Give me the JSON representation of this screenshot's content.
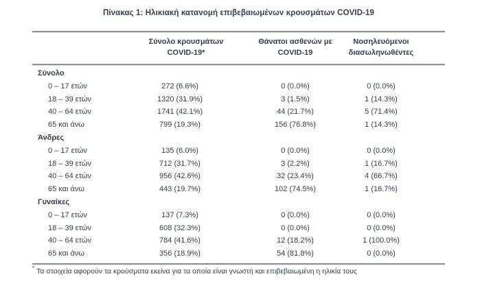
{
  "title": "Πίνακας 1: Ηλικιακή κατανομή επιβεβαιωμένων κρουσμάτων COVID-19",
  "table": {
    "columns": [
      {
        "line1": "Σύνολο κρουσμάτων",
        "line2": "COVID-19*"
      },
      {
        "line1": "Θάνατοι ασθενών με",
        "line2": "COVID-19"
      },
      {
        "line1": "Νοσηλευόμενοι",
        "line2": "διασωληνωθέντες"
      }
    ],
    "sections": [
      {
        "name": "Σύνολο",
        "rows": [
          {
            "label": "0 – 17 ετών",
            "cases": "272 (6.6%)",
            "deaths": "0 (0.0%)",
            "intubated": "0 (0.0%)"
          },
          {
            "label": "18 – 39 ετών",
            "cases": "1320 (31.9%)",
            "deaths": "3 (1.5%)",
            "intubated": "1 (14.3%)"
          },
          {
            "label": "40 – 64 ετών",
            "cases": "1741 (42.1%)",
            "deaths": "44 (21.7%)",
            "intubated": "5 (71.4%)"
          },
          {
            "label": "65 και άνω",
            "cases": "799 (19.3%)",
            "deaths": "156 (76.8%)",
            "intubated": "1 (14.3%)"
          }
        ]
      },
      {
        "name": "Άνδρες",
        "rows": [
          {
            "label": "0 – 17 ετών",
            "cases": "135 (6.0%)",
            "deaths": "0 (0.0%)",
            "intubated": "0 (0.0%)"
          },
          {
            "label": "18 – 39 ετών",
            "cases": "712 (31.7%)",
            "deaths": "3 (2.2%)",
            "intubated": "1 (16.7%)"
          },
          {
            "label": "40 – 64 ετών",
            "cases": "956 (42.6%)",
            "deaths": "32 (23.4%)",
            "intubated": "4 (66.7%)"
          },
          {
            "label": "65 και άνω",
            "cases": "443 (19.7%)",
            "deaths": "102 (74.5%)",
            "intubated": "1 (16.7%)"
          }
        ]
      },
      {
        "name": "Γυναίκες",
        "rows": [
          {
            "label": "0 – 17 ετών",
            "cases": "137 (7.3%)",
            "deaths": "0 (0.0%)",
            "intubated": "0 (0.0%)"
          },
          {
            "label": "18 – 39 ετών",
            "cases": "608 (32.3%)",
            "deaths": "0 (0.0%)",
            "intubated": "0 (0.0%)"
          },
          {
            "label": "40 – 64 ετών",
            "cases": "784 (41.6%)",
            "deaths": "12 (18.2%)",
            "intubated": "1 (100.0%)"
          },
          {
            "label": "65 και άνω",
            "cases": "356 (18.9%)",
            "deaths": "54 (81.8%)",
            "intubated": "0 (0.0%)"
          }
        ]
      }
    ],
    "footnote_marker": "*",
    "footnote": "Τα στοιχεία αφορούν τα κρούσματα εκείνα για τα οποία είναι γνωστή και επιβεβαιωμένη η ηλικία τους"
  },
  "colors": {
    "text": "#333e4e",
    "rule": "#8e9093",
    "background": "#ffffff"
  }
}
